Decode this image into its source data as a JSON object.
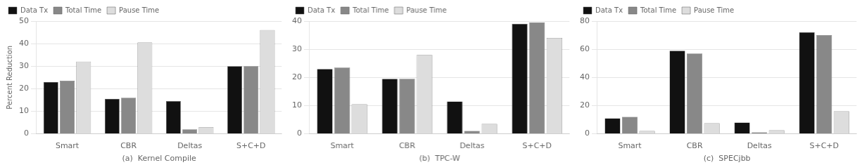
{
  "chart_data": [
    {
      "type": "bar",
      "xlabel": "(a)  Kernel Compile",
      "ylabel": "Percent Reduction",
      "categories": [
        "Smart",
        "CBR",
        "Deltas",
        "S+C+D"
      ],
      "series": [
        {
          "name": "Data Tx",
          "color": "#111111",
          "values": [
            23,
            15.5,
            14.5,
            30
          ]
        },
        {
          "name": "Total Time",
          "color": "#888888",
          "values": [
            23.5,
            16,
            2,
            30
          ]
        },
        {
          "name": "Pause Time",
          "color": "#dddddd",
          "values": [
            32,
            40.5,
            3,
            46
          ]
        }
      ],
      "ylim": [
        0,
        50
      ],
      "yticks": [
        0,
        10,
        20,
        30,
        40,
        50
      ],
      "grid": true,
      "legend": "upper left"
    },
    {
      "type": "bar",
      "xlabel": "(b)  TPC-W",
      "categories": [
        "Smart",
        "CBR",
        "Deltas",
        "S+C+D"
      ],
      "series": [
        {
          "name": "Data Tx",
          "color": "#111111",
          "values": [
            23,
            19.5,
            11.5,
            39
          ]
        },
        {
          "name": "Total Time",
          "color": "#888888",
          "values": [
            23.5,
            19.5,
            1,
            39.5
          ]
        },
        {
          "name": "Pause Time",
          "color": "#dddddd",
          "values": [
            10.5,
            28,
            3.5,
            34
          ]
        }
      ],
      "ylim": [
        0,
        40
      ],
      "yticks": [
        0,
        10,
        20,
        30,
        40
      ],
      "grid": true,
      "legend": "upper left"
    },
    {
      "type": "bar",
      "xlabel": "(c)  SPECjbb",
      "categories": [
        "Smart",
        "CBR",
        "Deltas",
        "S+C+D"
      ],
      "series": [
        {
          "name": "Data Tx",
          "color": "#111111",
          "values": [
            11,
            59,
            8,
            72
          ]
        },
        {
          "name": "Total Time",
          "color": "#888888",
          "values": [
            12,
            57,
            1,
            70
          ]
        },
        {
          "name": "Pause Time",
          "color": "#dddddd",
          "values": [
            2,
            7.5,
            2.5,
            16
          ]
        }
      ],
      "ylim": [
        0,
        80
      ],
      "yticks": [
        0,
        20,
        40,
        60,
        80
      ],
      "grid": true,
      "legend": "upper left"
    }
  ]
}
